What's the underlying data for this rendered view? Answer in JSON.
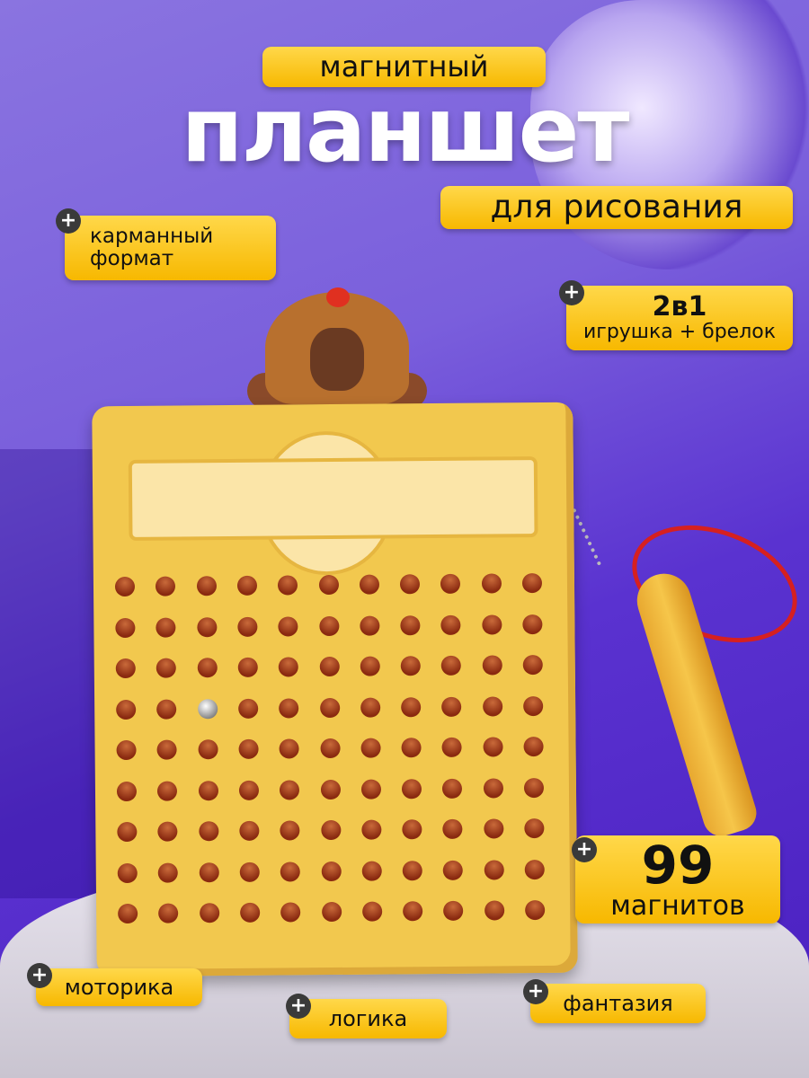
{
  "header": {
    "top_label": "магнитный",
    "title": "планшет",
    "subtitle": "для рисования"
  },
  "features": [
    {
      "icon": "plus-icon",
      "lines": [
        "карманный",
        "формат"
      ]
    },
    {
      "icon": "plus-icon",
      "headline": "2в1",
      "text": "игрушка + брелок"
    },
    {
      "icon": "plus-icon",
      "headline": "99",
      "text": "магнитов"
    },
    {
      "icon": "plus-icon",
      "text": "моторика"
    },
    {
      "icon": "plus-icon",
      "text": "логика"
    },
    {
      "icon": "plus-icon",
      "text": "фантазия"
    }
  ],
  "product": {
    "magnet_rows": 9,
    "magnet_cols": 11,
    "raised_magnet": {
      "row": 4,
      "col": 3
    }
  },
  "colors": {
    "badge": "#f7c21a",
    "background": "#6a45d8",
    "board": "#f2c84e",
    "magnet": "#8a2a10"
  }
}
